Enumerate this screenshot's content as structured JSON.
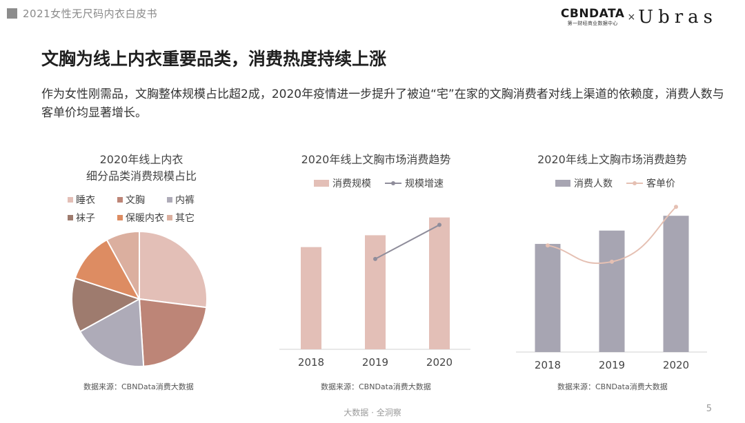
{
  "header": {
    "title": "2021女性无尺码内衣白皮书"
  },
  "logo": {
    "cbn": "CBNDATA",
    "cbn_sub": "第一财经商业数据中心",
    "x": "×",
    "brand": "Ubras"
  },
  "main": {
    "title": "文胸为线上内衣重要品类，消费热度持续上涨",
    "subtitle": "作为女性刚需品，文胸整体规模占比超2成，2020年疫情进一步提升了被迫“宅”在家的文胸消费者对线上渠道的依赖度，消费人数与客单价均显著增长。"
  },
  "chart_data": [
    {
      "type": "pie",
      "title": [
        "2020年线上内衣",
        "细分品类消费规模占比"
      ],
      "legend_position": "top",
      "categories": [
        "睡衣",
        "文胸",
        "内裤",
        "袜子",
        "保暖内衣",
        "其它"
      ],
      "values": [
        27,
        22,
        18,
        13,
        12,
        8
      ],
      "colors": [
        "#e3bfb7",
        "#bd8577",
        "#aeabb8",
        "#9e7b6e",
        "#dd8c62",
        "#dbaf9f"
      ],
      "source": "数据来源：CBNData消费大数据"
    },
    {
      "type": "bar",
      "title": "2020年线上文胸市场消费趋势",
      "legend_position": "top",
      "categories": [
        "2018",
        "2019",
        "2020"
      ],
      "series": [
        {
          "name": "消费规模",
          "kind": "bar",
          "values": [
            0.69,
            0.77,
            0.89
          ],
          "color": "#e3bfb7"
        },
        {
          "name": "规模增速",
          "kind": "line",
          "values": [
            null,
            0.61,
            0.84
          ],
          "color": "#8f8d9b"
        }
      ],
      "ylim": [
        0,
        1
      ],
      "source": "数据来源：CBNData消费大数据"
    },
    {
      "type": "bar",
      "title": "2020年线上文胸市场消费趋势",
      "legend_position": "top",
      "categories": [
        "2018",
        "2019",
        "2020"
      ],
      "series": [
        {
          "name": "消费人数",
          "kind": "bar",
          "values": [
            0.73,
            0.82,
            0.92
          ],
          "color": "#a7a5b2"
        },
        {
          "name": "客单价",
          "kind": "line",
          "values": [
            0.72,
            0.61,
            0.98
          ],
          "color": "#e5c0b3"
        }
      ],
      "ylim": [
        0,
        1
      ],
      "source": "数据来源：CBNData消费大数据"
    }
  ],
  "footer": {
    "text": "大数据 · 全洞察",
    "page": "5"
  }
}
